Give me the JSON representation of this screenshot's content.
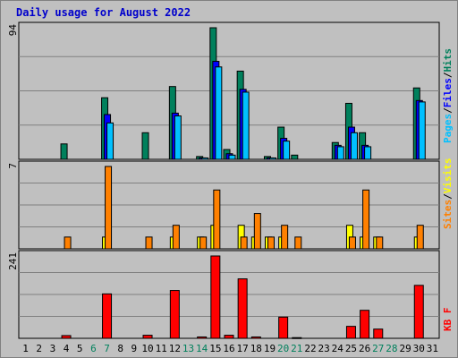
{
  "title": "Daily usage for August 2022",
  "colors": {
    "hits": "#00805c",
    "files": "#0000ff",
    "pages": "#00c0ff",
    "visits": "#ffff00",
    "sites": "#ff8000",
    "kbytes": "#ff0000",
    "weekend": "#00805c",
    "weekday": "#000000",
    "background": "#c0c0c0",
    "grid": "#808080"
  },
  "chart_data": [
    {
      "type": "bar",
      "panel": "top",
      "max_label": "94",
      "legend": [
        "Pages",
        "/",
        "Files",
        "/",
        "Hits"
      ],
      "categories": [
        "1",
        "2",
        "3",
        "4",
        "5",
        "6",
        "7",
        "8",
        "9",
        "10",
        "11",
        "12",
        "13",
        "14",
        "15",
        "16",
        "17",
        "18",
        "19",
        "20",
        "21",
        "22",
        "23",
        "24",
        "25",
        "26",
        "27",
        "28",
        "29",
        "30",
        "31"
      ],
      "ylim": [
        0,
        94
      ],
      "series": [
        {
          "name": "Hits",
          "values": [
            0,
            0,
            0,
            11,
            0,
            0,
            44,
            0,
            0,
            19,
            0,
            52,
            0,
            2,
            94,
            7,
            63,
            0,
            2,
            23,
            3,
            0,
            0,
            12,
            40,
            19,
            0,
            0,
            0,
            51,
            0
          ]
        },
        {
          "name": "Files",
          "values": [
            0,
            0,
            0,
            0,
            0,
            0,
            32,
            0,
            0,
            0,
            0,
            33,
            0,
            1,
            70,
            4,
            50,
            0,
            1,
            15,
            0,
            0,
            0,
            10,
            23,
            10,
            0,
            0,
            0,
            42,
            0
          ]
        },
        {
          "name": "Pages",
          "values": [
            0,
            0,
            0,
            0,
            0,
            0,
            26,
            0,
            0,
            0,
            0,
            31,
            0,
            1,
            66,
            3,
            48,
            0,
            1,
            13,
            0,
            0,
            0,
            9,
            19,
            9,
            0,
            0,
            0,
            41,
            0
          ]
        }
      ]
    },
    {
      "type": "bar",
      "panel": "middle",
      "max_label": "7",
      "legend": [
        "Sites",
        "/",
        "Visits"
      ],
      "categories": [
        "1",
        "2",
        "3",
        "4",
        "5",
        "6",
        "7",
        "8",
        "9",
        "10",
        "11",
        "12",
        "13",
        "14",
        "15",
        "16",
        "17",
        "18",
        "19",
        "20",
        "21",
        "22",
        "23",
        "24",
        "25",
        "26",
        "27",
        "28",
        "29",
        "30",
        "31"
      ],
      "ylim": [
        0,
        7
      ],
      "series": [
        {
          "name": "Visits",
          "values": [
            0,
            0,
            0,
            0,
            0,
            0,
            1,
            0,
            0,
            0,
            0,
            1,
            0,
            1,
            2,
            0,
            2,
            1,
            1,
            1,
            0,
            0,
            0,
            0,
            2,
            1,
            1,
            0,
            0,
            1,
            0
          ]
        },
        {
          "name": "Sites",
          "values": [
            0,
            0,
            0,
            1,
            0,
            0,
            7,
            0,
            0,
            1,
            0,
            2,
            0,
            1,
            5,
            0,
            1,
            3,
            1,
            2,
            1,
            0,
            0,
            0,
            1,
            5,
            1,
            0,
            0,
            2,
            0
          ]
        }
      ]
    },
    {
      "type": "bar",
      "panel": "bottom",
      "max_label": "241",
      "legend": [
        "KB F"
      ],
      "categories": [
        "1",
        "2",
        "3",
        "4",
        "5",
        "6",
        "7",
        "8",
        "9",
        "10",
        "11",
        "12",
        "13",
        "14",
        "15",
        "16",
        "17",
        "18",
        "19",
        "20",
        "21",
        "22",
        "23",
        "24",
        "25",
        "26",
        "27",
        "28",
        "29",
        "30",
        "31"
      ],
      "ylim": [
        0,
        241
      ],
      "series": [
        {
          "name": "KB F",
          "values": [
            0,
            0,
            0,
            8,
            0,
            0,
            130,
            0,
            0,
            9,
            0,
            140,
            0,
            4,
            241,
            9,
            174,
            4,
            0,
            62,
            2,
            0,
            0,
            0,
            35,
            82,
            27,
            0,
            0,
            155,
            0
          ]
        }
      ]
    }
  ],
  "day_labels": [
    "1",
    "2",
    "3",
    "4",
    "5",
    "6",
    "7",
    "8",
    "9",
    "10",
    "11",
    "12",
    "13",
    "14",
    "15",
    "16",
    "17",
    "18",
    "19",
    "20",
    "21",
    "22",
    "23",
    "24",
    "25",
    "26",
    "27",
    "28",
    "29",
    "30",
    "31"
  ],
  "weekend_days": [
    6,
    7,
    13,
    14,
    20,
    21,
    27,
    28
  ]
}
